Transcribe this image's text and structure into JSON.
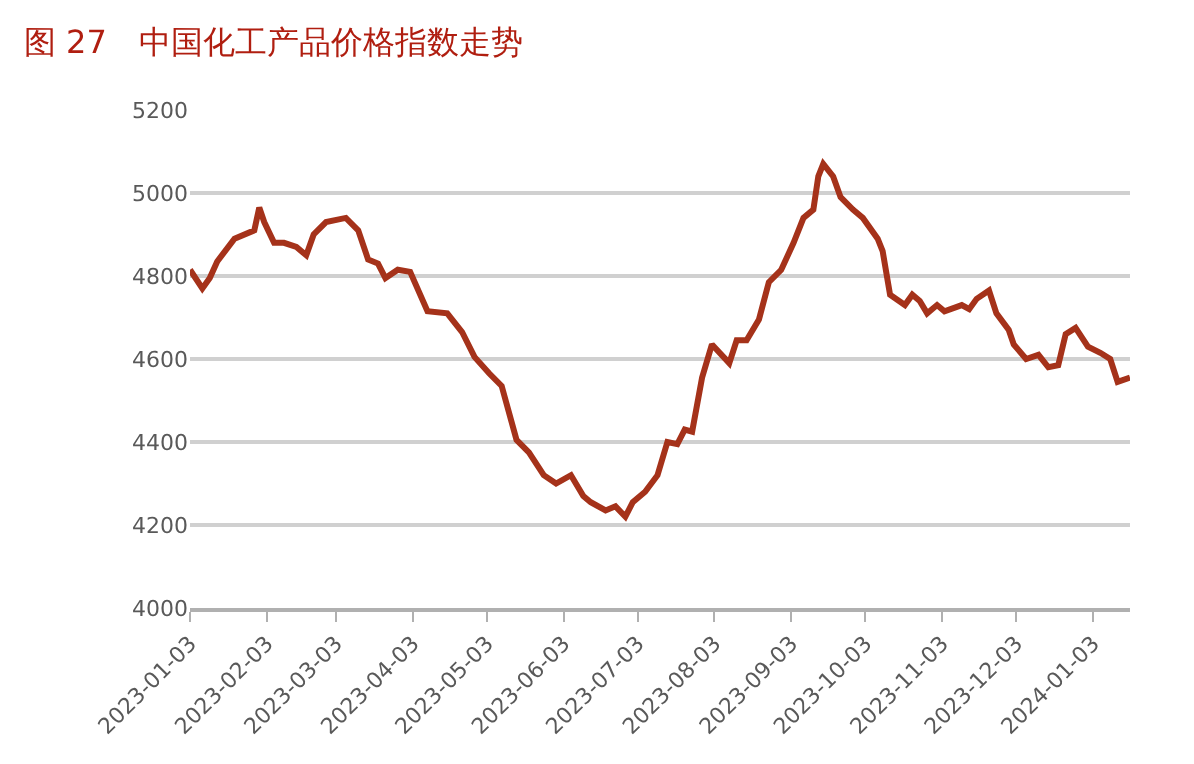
{
  "chart_data": {
    "type": "line",
    "title": "图 27　中国化工产品价格指数走势",
    "x": [
      "2023-01-03",
      "2023-01-08",
      "2023-01-11",
      "2023-01-14",
      "2023-01-21",
      "2023-01-29",
      "2023-01-31",
      "2023-02-02",
      "2023-02-06",
      "2023-02-10",
      "2023-02-15",
      "2023-02-19",
      "2023-02-22",
      "2023-02-27",
      "2023-03-07",
      "2023-03-12",
      "2023-03-16",
      "2023-03-20",
      "2023-03-23",
      "2023-03-28",
      "2023-04-02",
      "2023-04-09",
      "2023-04-17",
      "2023-04-23",
      "2023-04-28",
      "2023-05-04",
      "2023-05-09",
      "2023-05-15",
      "2023-05-20",
      "2023-05-26",
      "2023-05-31",
      "2023-06-06",
      "2023-06-11",
      "2023-06-14",
      "2023-06-20",
      "2023-06-24",
      "2023-06-28",
      "2023-07-01",
      "2023-07-06",
      "2023-07-11",
      "2023-07-15",
      "2023-07-19",
      "2023-07-22",
      "2023-07-25",
      "2023-07-29",
      "2023-08-02",
      "2023-08-09",
      "2023-08-12",
      "2023-08-16",
      "2023-08-21",
      "2023-08-25",
      "2023-08-30",
      "2023-09-04",
      "2023-09-08",
      "2023-09-12",
      "2023-09-14",
      "2023-09-16",
      "2023-09-20",
      "2023-09-23",
      "2023-09-28",
      "2023-10-02",
      "2023-10-08",
      "2023-10-10",
      "2023-10-13",
      "2023-10-19",
      "2023-10-22",
      "2023-10-25",
      "2023-10-28",
      "2023-11-01",
      "2023-11-04",
      "2023-11-11",
      "2023-11-14",
      "2023-11-17",
      "2023-11-22",
      "2023-11-25",
      "2023-11-30",
      "2023-12-02",
      "2023-12-07",
      "2023-12-12",
      "2023-12-16",
      "2023-12-20",
      "2023-12-23",
      "2023-12-27",
      "2024-01-01",
      "2024-01-06",
      "2024-01-10",
      "2024-01-13",
      "2024-01-18"
    ],
    "series": [
      {
        "color": "#a5321a",
        "values": [
          4815,
          4770,
          4795,
          4835,
          4890,
          4910,
          4965,
          4930,
          4880,
          4880,
          4870,
          4850,
          4900,
          4930,
          4940,
          4910,
          4840,
          4830,
          4795,
          4815,
          4810,
          4715,
          4710,
          4665,
          4605,
          4565,
          4535,
          4405,
          4375,
          4320,
          4300,
          4320,
          4270,
          4255,
          4235,
          4245,
          4220,
          4255,
          4280,
          4320,
          4400,
          4395,
          4430,
          4425,
          4555,
          4635,
          4590,
          4645,
          4645,
          4695,
          4785,
          4815,
          4880,
          4940,
          4960,
          5040,
          5070,
          5040,
          4990,
          4960,
          4940,
          4890,
          4860,
          4755,
          4730,
          4755,
          4740,
          4710,
          4730,
          4715,
          4730,
          4720,
          4745,
          4765,
          4710,
          4670,
          4635,
          4600,
          4610,
          4580,
          4585,
          4660,
          4675,
          4630,
          4615,
          4600,
          4545,
          4555
        ]
      }
    ],
    "xlim": [
      "2023-01-03",
      "2024-01-18"
    ],
    "xticks": [
      "2023-01-03",
      "2023-02-03",
      "2023-03-03",
      "2023-04-03",
      "2023-05-03",
      "2023-06-03",
      "2023-07-03",
      "2023-08-03",
      "2023-09-03",
      "2023-10-03",
      "2023-11-03",
      "2023-12-03",
      "2024-01-03"
    ],
    "ylim": [
      4000,
      5200
    ],
    "yticks": [
      4000,
      4200,
      4400,
      4600,
      4800,
      5000,
      5200
    ],
    "grid": "y",
    "legend": false,
    "line_style": "solid",
    "marker": "none"
  }
}
